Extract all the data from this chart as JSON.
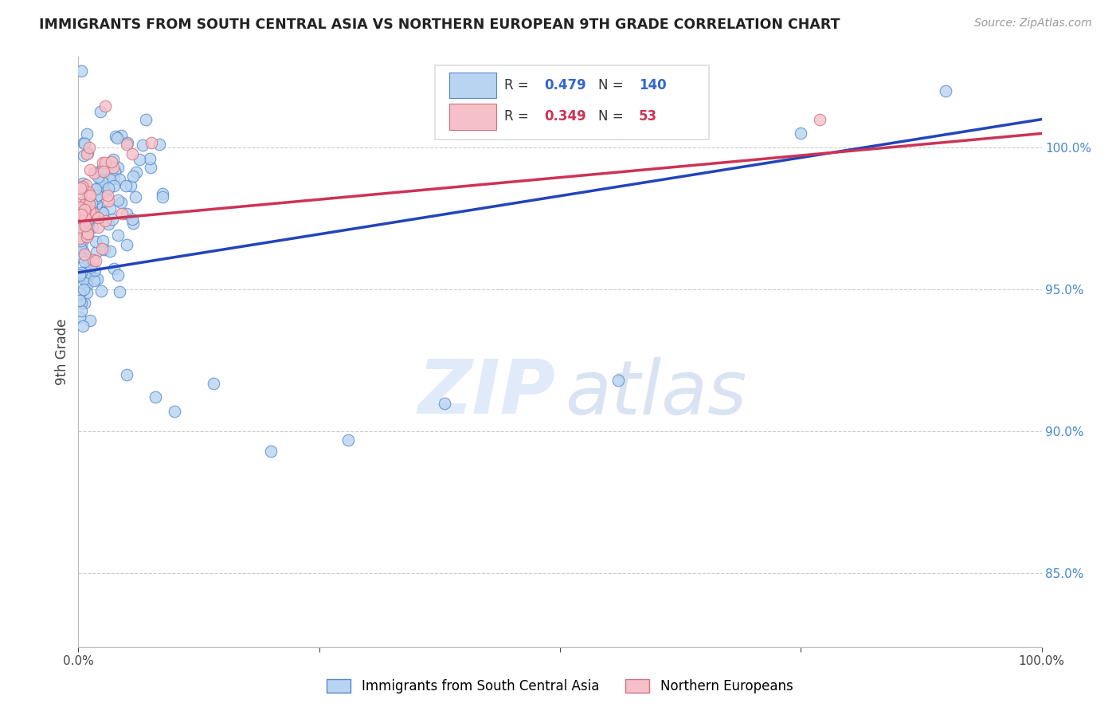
{
  "title": "IMMIGRANTS FROM SOUTH CENTRAL ASIA VS NORTHERN EUROPEAN 9TH GRADE CORRELATION CHART",
  "source": "Source: ZipAtlas.com",
  "ylabel": "9th Grade",
  "ylabel_right_ticks": [
    85.0,
    90.0,
    95.0,
    100.0
  ],
  "xmin": 0.0,
  "xmax": 1.0,
  "ymin": 0.824,
  "ymax": 1.032,
  "blue_color_face": "#b8d4f0",
  "blue_color_edge": "#5588cc",
  "pink_color_face": "#f5c0c8",
  "pink_color_edge": "#d07080",
  "blue_line_color": "#2244bb",
  "pink_line_color": "#cc3355",
  "blue_R": 0.479,
  "blue_N": 140,
  "pink_R": 0.349,
  "pink_N": 53,
  "watermark_zip_color": "#ccddf5",
  "watermark_atlas_color": "#bbcce8",
  "legend_blue_R_color": "#3366cc",
  "legend_pink_R_color": "#cc3355",
  "legend_N_blue_color": "#3366cc",
  "legend_N_pink_color": "#cc3355"
}
